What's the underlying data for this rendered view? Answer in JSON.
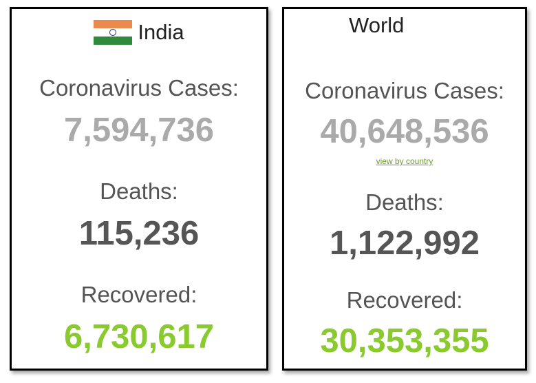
{
  "india": {
    "title": "India",
    "cases_label": "Coronavirus Cases:",
    "cases_value": "7,594,736",
    "deaths_label": "Deaths:",
    "deaths_value": "115,236",
    "recovered_label": "Recovered:",
    "recovered_value": "6,730,617"
  },
  "world": {
    "title": "World",
    "cases_label": "Coronavirus Cases:",
    "cases_value": "40,648,536",
    "view_link": "view by country",
    "deaths_label": "Deaths:",
    "deaths_value": "1,122,992",
    "recovered_label": "Recovered:",
    "recovered_value": "30,353,355"
  },
  "colors": {
    "cases": "#aaaaaa",
    "deaths": "#555555",
    "recovered": "#8aca2e",
    "link": "#6f9a2e",
    "flag_saffron": "#ea8a4c",
    "flag_green": "#2f8a3c"
  },
  "icons": {
    "india_flag": "india-flag-icon"
  }
}
